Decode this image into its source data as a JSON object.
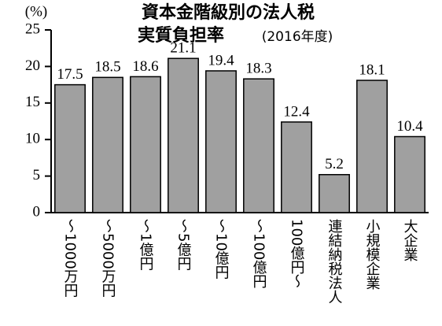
{
  "chart_data": {
    "type": "bar",
    "title": [
      "資本金階級別の法人税",
      "実質負担率"
    ],
    "subtitle": "(2016年度)",
    "y_axis_label": "(%)",
    "categories": [
      "～1000万円",
      "～5000万円",
      "～1億円",
      "～5億円",
      "～10億円",
      "～100億円",
      "100億円～",
      "連結納税法人",
      "小規模企業",
      "大企業"
    ],
    "values": [
      17.5,
      18.5,
      18.6,
      21.1,
      19.4,
      18.3,
      12.4,
      5.2,
      18.1,
      10.4
    ],
    "color": "#a0a0a0",
    "ylim": [
      0,
      25
    ],
    "yticks": [
      0,
      5,
      10,
      15,
      20,
      25
    ],
    "grid": false
  }
}
